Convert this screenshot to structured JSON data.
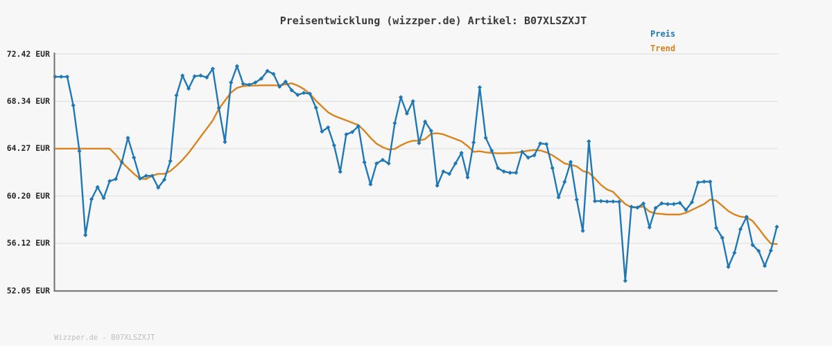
{
  "title": "Preisentwicklung (wizzper.de) Artikel: B07XLSZXJT",
  "footer": "Wizzper.de - B07XLSZXJT",
  "legend": {
    "items": [
      {
        "label": "Preis",
        "color": "#1f77b4"
      },
      {
        "label": "Trend",
        "color": "#d9831d"
      }
    ]
  },
  "chart_data": {
    "type": "line",
    "title": "Preisentwicklung (wizzper.de) Artikel: B07XLSZXJT",
    "xlabel": "",
    "ylabel": "",
    "x_tick_labels": [],
    "ylim": [
      52.05,
      72.42
    ],
    "grid": true,
    "legend_position": "top-right",
    "background_color": "#f7f7f7",
    "grid_color": "#e3e3e3",
    "axis_color": "#6f6f6f",
    "y_ticks": [
      {
        "label": "72.42 EUR",
        "value": 72.42,
        "gridline": true
      },
      {
        "label": "68.34 EUR",
        "value": 68.34,
        "gridline": true
      },
      {
        "label": "64.27 EUR",
        "value": 64.27,
        "gridline": true
      },
      {
        "label": "60.20 EUR",
        "value": 60.2,
        "gridline": true
      },
      {
        "label": "56.12 EUR",
        "value": 56.12,
        "gridline": true
      },
      {
        "label": "52.05 EUR",
        "value": 52.05,
        "gridline": false
      }
    ],
    "series": [
      {
        "name": "Preis",
        "color": "#1f77b4",
        "markers": true,
        "values": [
          70.46,
          70.46,
          70.46,
          68.0,
          64.07,
          56.83,
          59.92,
          60.96,
          60.02,
          61.48,
          61.66,
          63.1,
          65.2,
          63.5,
          61.7,
          61.93,
          61.93,
          60.92,
          61.6,
          63.2,
          68.86,
          70.56,
          69.44,
          70.5,
          70.56,
          70.4,
          71.15,
          67.77,
          64.85,
          69.96,
          71.37,
          69.85,
          69.77,
          69.96,
          70.3,
          70.96,
          70.7,
          69.6,
          70.04,
          69.3,
          68.9,
          69.07,
          69.0,
          67.8,
          65.75,
          66.1,
          64.55,
          62.28,
          65.5,
          65.7,
          66.2,
          63.1,
          61.2,
          63.0,
          63.3,
          63.0,
          66.47,
          68.7,
          67.3,
          68.35,
          64.75,
          66.6,
          65.8,
          61.1,
          62.3,
          62.1,
          63.0,
          63.9,
          61.8,
          64.8,
          69.55,
          65.2,
          64.1,
          62.6,
          62.3,
          62.2,
          62.2,
          64.0,
          63.5,
          63.7,
          64.72,
          64.66,
          62.6,
          60.08,
          61.41,
          63.12,
          59.88,
          57.2,
          64.9,
          59.76,
          59.76,
          59.72,
          59.72,
          59.7,
          52.9,
          59.27,
          59.2,
          59.55,
          57.5,
          59.16,
          59.56,
          59.5,
          59.5,
          59.6,
          59.0,
          59.66,
          61.36,
          61.43,
          61.43,
          57.45,
          56.6,
          54.1,
          55.3,
          57.34,
          58.4,
          55.98,
          55.46,
          54.18,
          55.5,
          57.55
        ]
      },
      {
        "name": "Trend",
        "color": "#d9831d",
        "markers": false,
        "values": [
          64.27,
          64.27,
          64.27,
          64.27,
          64.27,
          64.27,
          64.27,
          64.27,
          64.27,
          64.27,
          63.75,
          63.1,
          62.6,
          62.1,
          61.7,
          61.65,
          61.95,
          62.1,
          62.1,
          62.35,
          62.8,
          63.3,
          63.9,
          64.6,
          65.3,
          66.0,
          66.7,
          67.7,
          68.4,
          69.1,
          69.5,
          69.65,
          69.7,
          69.7,
          69.72,
          69.72,
          69.72,
          69.72,
          69.8,
          69.9,
          69.7,
          69.4,
          69.0,
          68.4,
          67.9,
          67.4,
          67.1,
          66.9,
          66.7,
          66.5,
          66.3,
          65.8,
          65.2,
          64.7,
          64.4,
          64.2,
          64.25,
          64.55,
          64.8,
          64.95,
          64.95,
          65.1,
          65.55,
          65.6,
          65.5,
          65.3,
          65.1,
          64.9,
          64.5,
          64.0,
          64.05,
          63.95,
          63.9,
          63.87,
          63.87,
          63.9,
          63.92,
          64.0,
          64.1,
          64.15,
          64.12,
          63.95,
          63.7,
          63.35,
          63.0,
          62.88,
          62.75,
          62.35,
          62.2,
          61.7,
          61.15,
          60.75,
          60.55,
          60.0,
          59.5,
          59.22,
          59.2,
          59.3,
          58.85,
          58.7,
          58.65,
          58.6,
          58.6,
          58.6,
          58.75,
          59.0,
          59.25,
          59.5,
          59.9,
          59.8,
          59.35,
          58.9,
          58.6,
          58.42,
          58.35,
          58.05,
          57.4,
          56.7,
          56.1,
          56.06
        ]
      }
    ]
  }
}
